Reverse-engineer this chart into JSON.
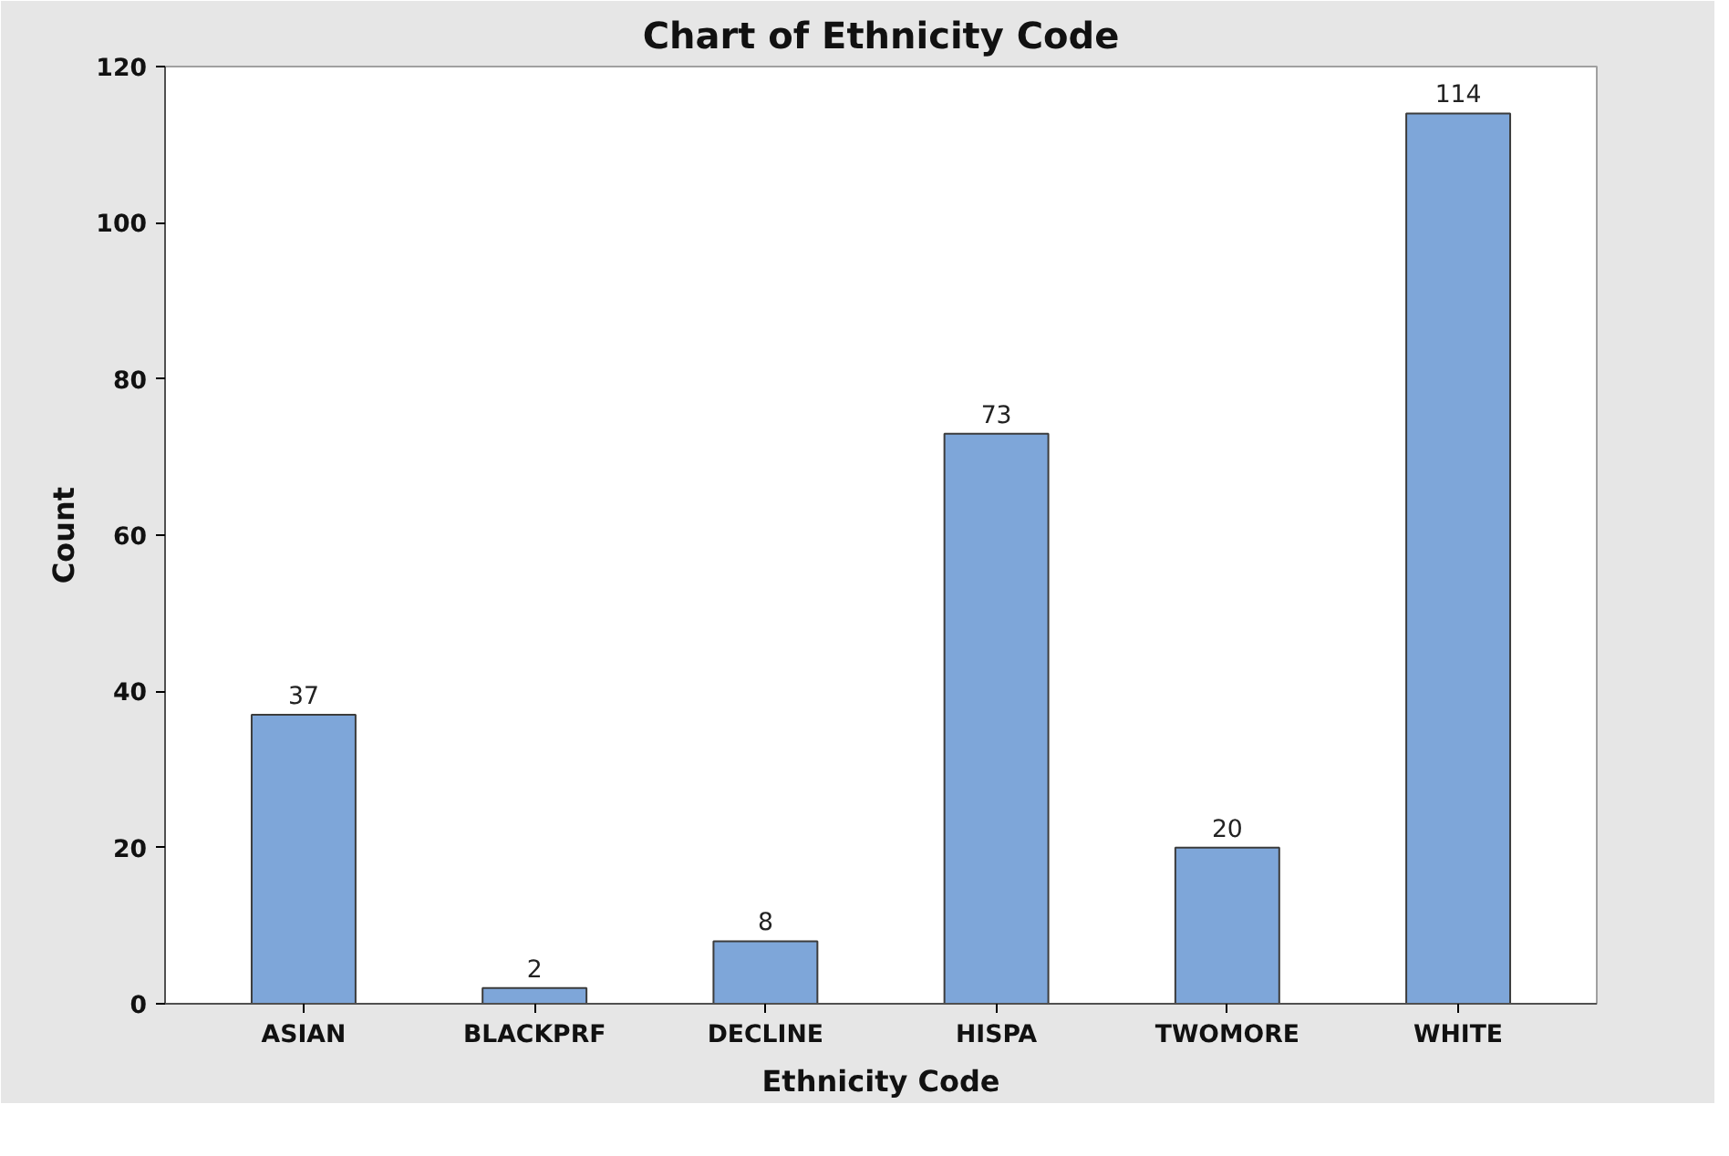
{
  "chart_data": {
    "type": "bar",
    "title": "Chart of Ethnicity Code",
    "xlabel": "Ethnicity Code",
    "ylabel": "Count",
    "categories": [
      "ASIAN",
      "BLACKPRF",
      "DECLINE",
      "HISPA",
      "TWOMORE",
      "WHITE"
    ],
    "values": [
      37,
      2,
      8,
      73,
      20,
      114
    ],
    "color": "#7ea6d9",
    "ylim": [
      0,
      120
    ],
    "yticks": [
      0,
      20,
      40,
      60,
      80,
      100,
      120
    ],
    "data_labels": true,
    "grid": false
  }
}
